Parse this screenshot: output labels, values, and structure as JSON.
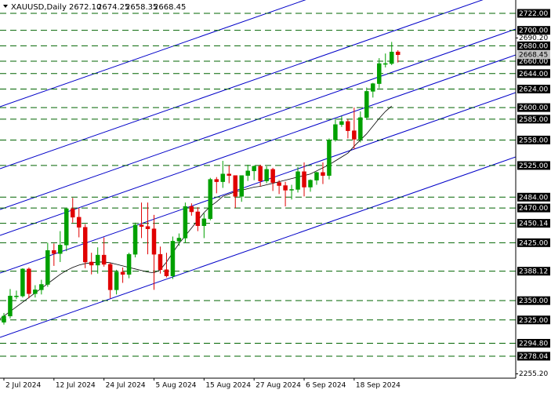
{
  "chart_data": {
    "type": "candlestick",
    "title": "XAUUSD,Daily",
    "ohlc_labels": [
      "2672.10",
      "2674.25",
      "2658.35",
      "2668.45"
    ],
    "categories": [
      null,
      "2 Jul 2024",
      null,
      null,
      null,
      null,
      null,
      null,
      null,
      "12 Jul 2024",
      null,
      null,
      null,
      null,
      null,
      null,
      null,
      "24 Jul 2024",
      null,
      null,
      null,
      null,
      null,
      null,
      null,
      "5 Aug 2024",
      null,
      null,
      null,
      null,
      null,
      null,
      null,
      "15 Aug 2024",
      null,
      null,
      null,
      null,
      null,
      null,
      null,
      "27 Aug 2024",
      null,
      null,
      null,
      null,
      null,
      null,
      null,
      "6 Sep 2024",
      null,
      null,
      null,
      null,
      null,
      null,
      null,
      "18 Sep 2024",
      null,
      null,
      null,
      null,
      null,
      null,
      null
    ],
    "open": [
      2326,
      2322,
      2330,
      2356,
      2356,
      2391,
      2359,
      2364,
      2371,
      2415,
      2411,
      2422,
      2469,
      2458,
      2445,
      2400,
      2396,
      2409,
      2397,
      2364,
      2387,
      2384,
      2410,
      2448,
      2446,
      2443,
      2410,
      2390,
      2382,
      2427,
      2431,
      2472,
      2465,
      2447,
      2456,
      2507,
      2504,
      2514,
      2512,
      2485,
      2512,
      2518,
      2524,
      2505,
      2520,
      2503,
      2499,
      2493,
      2494,
      2517,
      2497,
      2506,
      2516,
      2512,
      2558,
      2578,
      2582,
      2570,
      2559,
      2587,
      2621,
      2631,
      2657,
      2657,
      2672.1
    ],
    "high": [
      2339,
      2334,
      2365,
      2363,
      2392,
      2393,
      2370,
      2377,
      2425,
      2424,
      2440,
      2468,
      2483,
      2470,
      2449,
      2412,
      2419,
      2432,
      2399,
      2390,
      2393,
      2412,
      2451,
      2477,
      2477,
      2461,
      2420,
      2412,
      2433,
      2437,
      2477,
      2476,
      2471,
      2463,
      2509,
      2510,
      2531,
      2525,
      2512,
      2512,
      2526,
      2525,
      2526,
      2524,
      2522,
      2506,
      2504,
      2500,
      2523,
      2529,
      2507,
      2517,
      2529,
      2560,
      2586,
      2589,
      2585,
      2600,
      2595,
      2626,
      2632,
      2664,
      2670,
      2685,
      2674.25
    ],
    "low": [
      2318,
      2319,
      2327,
      2352,
      2354,
      2353,
      2354,
      2358,
      2368,
      2395,
      2400,
      2414,
      2451,
      2432,
      2392,
      2384,
      2385,
      2394,
      2353,
      2358,
      2373,
      2379,
      2406,
      2431,
      2410,
      2364,
      2385,
      2380,
      2378,
      2421,
      2425,
      2460,
      2440,
      2431,
      2454,
      2489,
      2496,
      2502,
      2470,
      2478,
      2505,
      2506,
      2498,
      2502,
      2492,
      2488,
      2472,
      2481,
      2490,
      2485,
      2491,
      2500,
      2501,
      2507,
      2556,
      2575,
      2560,
      2546,
      2555,
      2584,
      2613,
      2625,
      2652,
      2655,
      2658.35
    ],
    "close": [
      2322,
      2330,
      2356,
      2356,
      2391,
      2359,
      2364,
      2371,
      2415,
      2411,
      2422,
      2469,
      2458,
      2445,
      2400,
      2396,
      2409,
      2397,
      2364,
      2387,
      2384,
      2410,
      2448,
      2446,
      2443,
      2410,
      2390,
      2382,
      2427,
      2431,
      2472,
      2465,
      2447,
      2456,
      2507,
      2504,
      2514,
      2512,
      2485,
      2512,
      2518,
      2524,
      2505,
      2520,
      2503,
      2499,
      2493,
      2494,
      2517,
      2497,
      2506,
      2516,
      2512,
      2558,
      2578,
      2582,
      2570,
      2559,
      2587,
      2621,
      2631,
      2657,
      2657,
      2672,
      2668.45
    ],
    "ma": {
      "color": "#000000",
      "values": [
        2324,
        2330,
        2336,
        2342,
        2348,
        2354,
        2360,
        2366,
        2372,
        2378,
        2384,
        2389,
        2393,
        2396,
        2398,
        2399,
        2400,
        2400,
        2399,
        2397,
        2395,
        2393,
        2391,
        2389,
        2387,
        2386,
        2390,
        2400,
        2412,
        2424,
        2434,
        2444,
        2454,
        2464,
        2472,
        2478,
        2485,
        2488,
        2491,
        2493,
        2495,
        2497,
        2498,
        2500,
        2502,
        2504,
        2506,
        2508,
        2510,
        2512,
        2514,
        2518,
        2522,
        2526,
        2531,
        2536,
        2541,
        2550,
        2558,
        2566,
        2576,
        2586,
        2595,
        2602,
        null
      ]
    },
    "up_color": "#00a000",
    "down_color": "#e00000",
    "ylim": [
      2249.6,
      2739.3
    ],
    "yticks": [
      {
        "value": 2690.2,
        "label": "2690.20"
      },
      {
        "value": 2255.2,
        "label": "2255.20"
      }
    ],
    "level_color": "#006400",
    "levels": [
      {
        "value": 2722,
        "label": "2722.00"
      },
      {
        "value": 2700,
        "label": "2700.00"
      },
      {
        "value": 2680,
        "label": "2680.00"
      },
      {
        "value": 2660,
        "label": "2660.00"
      },
      {
        "value": 2644,
        "label": "2644.00"
      },
      {
        "value": 2624,
        "label": "2624.00"
      },
      {
        "value": 2600,
        "label": "2600.00"
      },
      {
        "value": 2585,
        "label": "2585.00"
      },
      {
        "value": 2558,
        "label": "2558.00"
      },
      {
        "value": 2525,
        "label": "2525.00"
      },
      {
        "value": 2484,
        "label": "2484.00"
      },
      {
        "value": 2470,
        "label": "2470.00"
      },
      {
        "value": 2450.14,
        "label": "2450.14"
      },
      {
        "value": 2425,
        "label": "2425.00"
      },
      {
        "value": 2388.12,
        "label": "2388.12"
      },
      {
        "value": 2350,
        "label": "2350.00"
      },
      {
        "value": 2325,
        "label": "2325.00"
      },
      {
        "value": 2294.8,
        "label": "2294.80"
      },
      {
        "value": 2278.04,
        "label": "2278.04"
      }
    ],
    "last": {
      "value": 2668.45,
      "label": "2668.45"
    }
  }
}
